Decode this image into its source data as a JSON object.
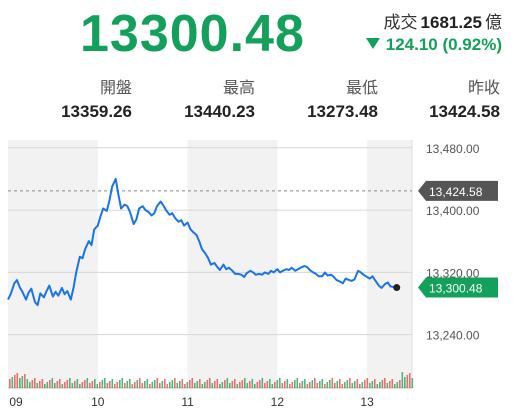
{
  "quote": {
    "price": "13300.48",
    "volume_label": "成交",
    "volume_value": "1681.25",
    "volume_unit": "億",
    "change": "124.10 (0.92%)",
    "direction": "down"
  },
  "stats": [
    {
      "label": "開盤",
      "value": "13359.26"
    },
    {
      "label": "最高",
      "value": "13440.23"
    },
    {
      "label": "最低",
      "value": "13273.48"
    },
    {
      "label": "昨收",
      "value": "13424.58"
    }
  ],
  "colors": {
    "price": "#12a05a",
    "line": "#1a73e8",
    "prev_close": "#555555",
    "volume_up": "#e0504a",
    "volume_down": "#2ca05a"
  },
  "chart_data": {
    "type": "line",
    "title": "",
    "xlabel": "",
    "ylabel": "",
    "ylim": [
      13210,
      13490
    ],
    "yticks": [
      "13,480.00",
      "13,400.00",
      "13,320.00",
      "13,240.00"
    ],
    "ytick_values": [
      13480,
      13400,
      13320,
      13240
    ],
    "xticks": [
      "09",
      "10",
      "11",
      "12",
      "13"
    ],
    "xtick_positions": [
      0,
      1,
      2,
      3,
      4
    ],
    "xlim": [
      0,
      4.5
    ],
    "grid": true,
    "reference_line": {
      "name": "prev_close",
      "value": 13424.58,
      "label": "13,424.58"
    },
    "last_label": "13,300.48",
    "series": [
      {
        "x": [
          0,
          0.03,
          0.07,
          0.1,
          0.13,
          0.16,
          0.2,
          0.23,
          0.26,
          0.3,
          0.33,
          0.36,
          0.4,
          0.43,
          0.46,
          0.5,
          0.53,
          0.56,
          0.6,
          0.63,
          0.66,
          0.7,
          0.73,
          0.76,
          0.8,
          0.83,
          0.86,
          0.9,
          0.93,
          0.96,
          1.0,
          1.03,
          1.06,
          1.1,
          1.13,
          1.16,
          1.2,
          1.23,
          1.26,
          1.3,
          1.33,
          1.36,
          1.4,
          1.43,
          1.46,
          1.5,
          1.53,
          1.56,
          1.6,
          1.63,
          1.66,
          1.7,
          1.73,
          1.76,
          1.8,
          1.83,
          1.86,
          1.9,
          1.93,
          1.96,
          2.0,
          2.03,
          2.06,
          2.1,
          2.13,
          2.16,
          2.2,
          2.23,
          2.26,
          2.3,
          2.33,
          2.36,
          2.4,
          2.43,
          2.46,
          2.5,
          2.53,
          2.56,
          2.6,
          2.63,
          2.66,
          2.7,
          2.73,
          2.76,
          2.8,
          2.83,
          2.86,
          2.9,
          2.93,
          2.96,
          3.0,
          3.03,
          3.06,
          3.1,
          3.13,
          3.16,
          3.2,
          3.23,
          3.26,
          3.3,
          3.33,
          3.36,
          3.4,
          3.43,
          3.46,
          3.5,
          3.53,
          3.56,
          3.6,
          3.63,
          3.66,
          3.7,
          3.73,
          3.76,
          3.8,
          3.83,
          3.86,
          3.9,
          3.93,
          3.96,
          4.0,
          4.03,
          4.06,
          4.1,
          4.13,
          4.16,
          4.2,
          4.23,
          4.26,
          4.3,
          4.33
        ],
        "values": [
          13285,
          13292,
          13306,
          13310,
          13301,
          13295,
          13285,
          13294,
          13299,
          13282,
          13278,
          13293,
          13288,
          13296,
          13303,
          13289,
          13295,
          13290,
          13300,
          13292,
          13296,
          13285,
          13300,
          13320,
          13340,
          13338,
          13350,
          13360,
          13355,
          13375,
          13380,
          13392,
          13402,
          13399,
          13412,
          13430,
          13440,
          13420,
          13402,
          13407,
          13405,
          13397,
          13382,
          13388,
          13402,
          13405,
          13400,
          13398,
          13393,
          13396,
          13405,
          13411,
          13406,
          13400,
          13394,
          13396,
          13390,
          13385,
          13387,
          13380,
          13384,
          13376,
          13372,
          13368,
          13360,
          13350,
          13344,
          13338,
          13330,
          13332,
          13327,
          13323,
          13330,
          13324,
          13326,
          13322,
          13318,
          13318,
          13317,
          13314,
          13319,
          13322,
          13320,
          13317,
          13318,
          13317,
          13320,
          13318,
          13322,
          13320,
          13324,
          13320,
          13322,
          13324,
          13323,
          13326,
          13322,
          13324,
          13326,
          13328,
          13327,
          13323,
          13320,
          13318,
          13315,
          13315,
          13320,
          13316,
          13317,
          13314,
          13310,
          13308,
          13306,
          13312,
          13310,
          13309,
          13311,
          13322,
          13320,
          13317,
          13314,
          13312,
          13315,
          13308,
          13303,
          13300,
          13305,
          13307,
          13302,
          13301,
          13300.48
        ]
      }
    ],
    "volume_bars_up_fraction": 0.5
  }
}
